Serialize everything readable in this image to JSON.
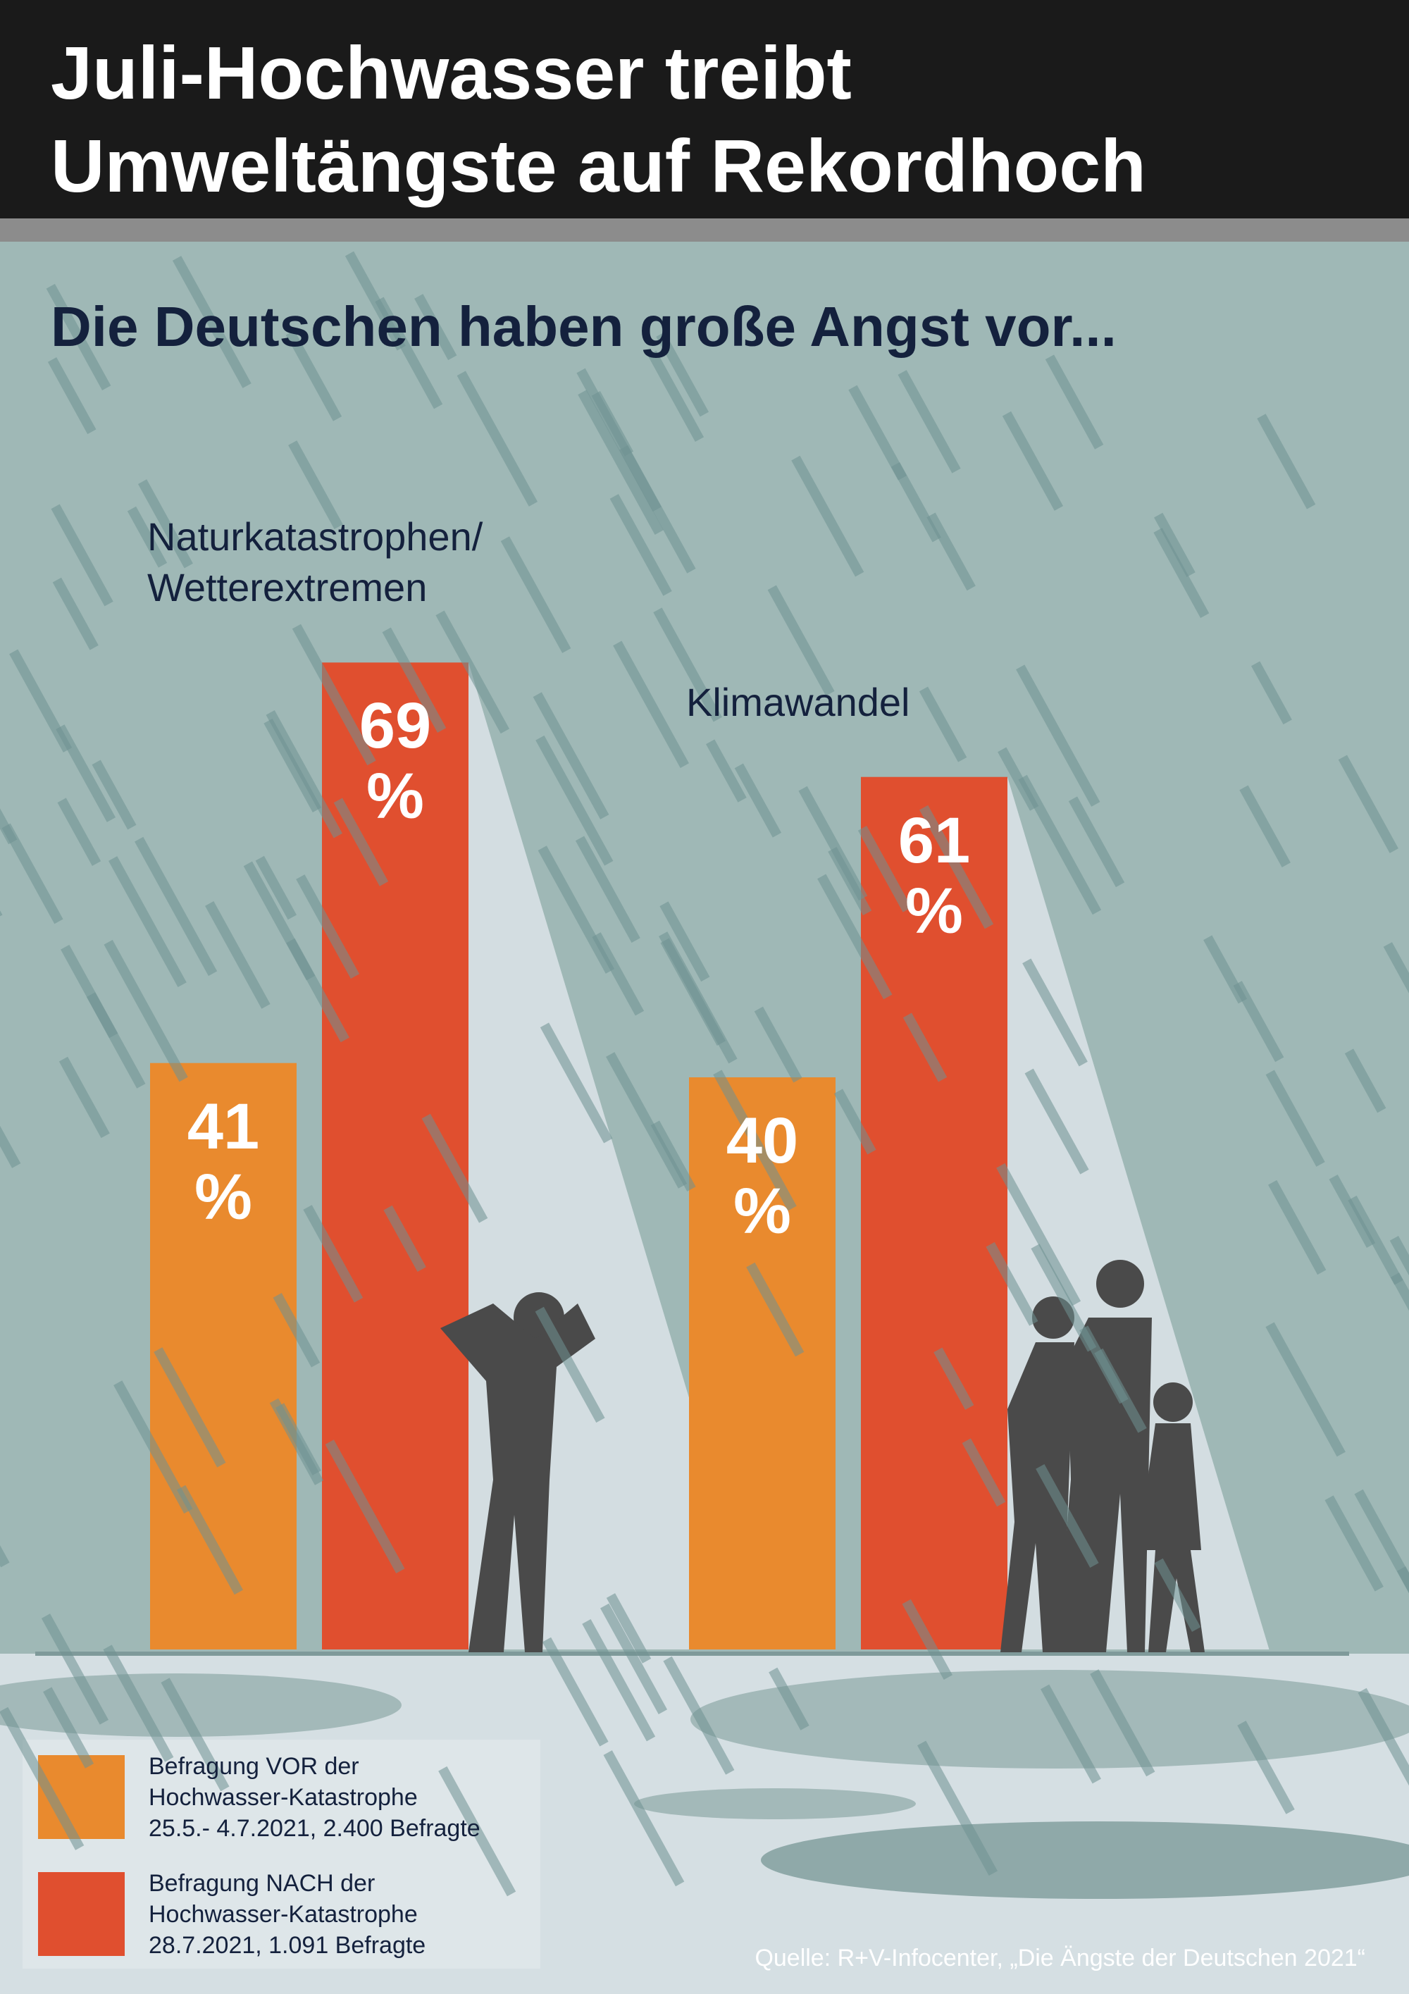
{
  "chart_data": {
    "type": "bar",
    "title": "Juli-Hochwasser treibt\nUmweltängste auf Rekordhoch",
    "subtitle": "Die Deutschen haben große Angst vor...",
    "categories": [
      "Naturkatastrophen/\nWetterextremen",
      "Klimawandel"
    ],
    "series": [
      {
        "name": "Befragung VOR der\nHochwasser-Katastrophe\n25.5.- 4.7.2021, 2.400 Befragte",
        "color": "#e98a2e",
        "values": [
          41,
          40
        ],
        "value_labels": [
          "41 %",
          "40 %"
        ]
      },
      {
        "name": "Befragung NACH der\nHochwasser-Katastrophe\n28.7.2021, 1.091 Befragte",
        "color": "#e04f2f",
        "values": [
          69,
          61
        ],
        "value_labels": [
          "69 %",
          "61 %"
        ]
      }
    ],
    "source": "Quelle: R+V-Infocenter, „Die Ängste der Deutschen 2021“"
  }
}
